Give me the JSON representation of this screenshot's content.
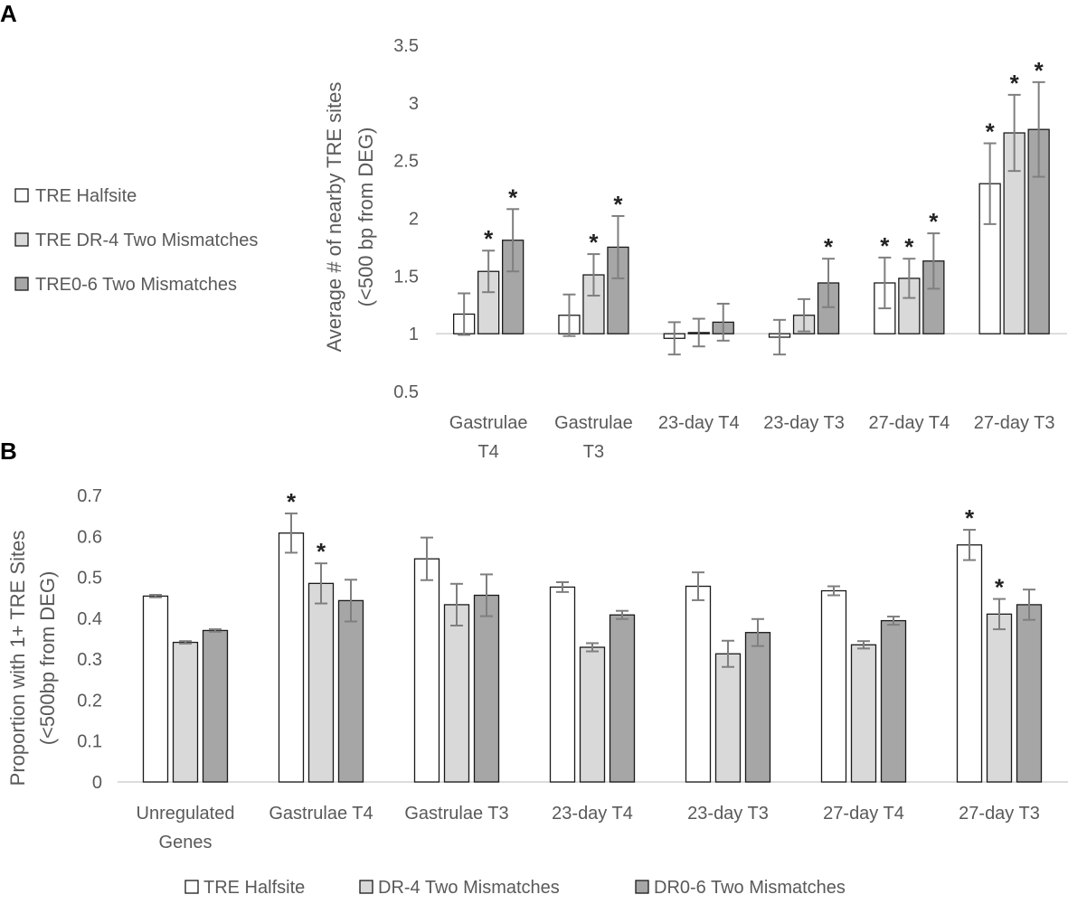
{
  "chart_data": [
    {
      "panel": "A",
      "type": "bar",
      "ylabel": "Average # of nearby TRE sites",
      "ylabel2": "(<500 bp from DEG)",
      "ylim": [
        0.5,
        3.5
      ],
      "baseline": 1,
      "yticks": [
        "3.5",
        "3",
        "2.5",
        "2",
        "1.5",
        "1",
        "0.5"
      ],
      "categories": [
        [
          "Gastrulae",
          "T4"
        ],
        [
          "Gastrulae",
          "T3"
        ],
        [
          "23-day T4"
        ],
        [
          "23-day T3"
        ],
        [
          "27-day T4"
        ],
        [
          "27-day T3"
        ]
      ],
      "series": [
        {
          "name": "TRE Halfsite",
          "color": "#ffffff",
          "values": [
            1.17,
            1.16,
            0.96,
            0.97,
            1.44,
            2.3
          ],
          "err": [
            0.18,
            0.18,
            0.14,
            0.15,
            0.22,
            0.35
          ],
          "sig": [
            false,
            false,
            false,
            false,
            true,
            true
          ]
        },
        {
          "name": "TRE DR-4 Two Mismatches",
          "color": "#d9d9d9",
          "values": [
            1.54,
            1.51,
            1.01,
            1.16,
            1.48,
            2.74
          ],
          "err": [
            0.18,
            0.18,
            0.12,
            0.14,
            0.17,
            0.33
          ],
          "sig": [
            true,
            true,
            false,
            false,
            true,
            true
          ]
        },
        {
          "name": "TRE0-6 Two Mismatches",
          "color": "#a6a6a6",
          "values": [
            1.81,
            1.75,
            1.1,
            1.44,
            1.63,
            2.77
          ],
          "err": [
            0.27,
            0.27,
            0.16,
            0.21,
            0.24,
            0.41
          ],
          "sig": [
            true,
            true,
            false,
            true,
            true,
            true
          ]
        }
      ],
      "star": "*"
    },
    {
      "panel": "B",
      "type": "bar",
      "ylabel": "Proportion with 1+ TRE Sites",
      "ylabel2": "(<500bp from DEG)",
      "ylim": [
        0,
        0.7
      ],
      "baseline": 0,
      "yticks": [
        "0.7",
        "0.6",
        "0.5",
        "0.4",
        "0.3",
        "0.2",
        "0.1",
        "0"
      ],
      "categories": [
        [
          "Unregulated",
          "Genes"
        ],
        [
          "Gastrulae T4"
        ],
        [
          "Gastrulae T3"
        ],
        [
          "23-day T4"
        ],
        [
          "23-day T3"
        ],
        [
          "27-day T4"
        ],
        [
          "27-day T3"
        ]
      ],
      "series": [
        {
          "name": "TRE Halfsite",
          "color": "#ffffff",
          "values": [
            0.454,
            0.608,
            0.545,
            0.476,
            0.478,
            0.467,
            0.579
          ],
          "err": [
            0.003,
            0.048,
            0.052,
            0.012,
            0.034,
            0.011,
            0.037
          ],
          "sig": [
            false,
            true,
            false,
            false,
            false,
            false,
            true
          ]
        },
        {
          "name": "DR-4 Two Mismatches",
          "color": "#d9d9d9",
          "values": [
            0.341,
            0.485,
            0.433,
            0.329,
            0.313,
            0.335,
            0.41
          ],
          "err": [
            0.003,
            0.049,
            0.051,
            0.01,
            0.032,
            0.009,
            0.037
          ],
          "sig": [
            false,
            true,
            false,
            false,
            false,
            false,
            true
          ]
        },
        {
          "name": "DR0-6 Two Mismatches",
          "color": "#a6a6a6",
          "values": [
            0.37,
            0.443,
            0.456,
            0.408,
            0.365,
            0.394,
            0.433
          ],
          "err": [
            0.003,
            0.051,
            0.051,
            0.01,
            0.033,
            0.01,
            0.037
          ],
          "sig": [
            false,
            false,
            false,
            false,
            false,
            false,
            false
          ]
        }
      ],
      "star": "*"
    }
  ]
}
